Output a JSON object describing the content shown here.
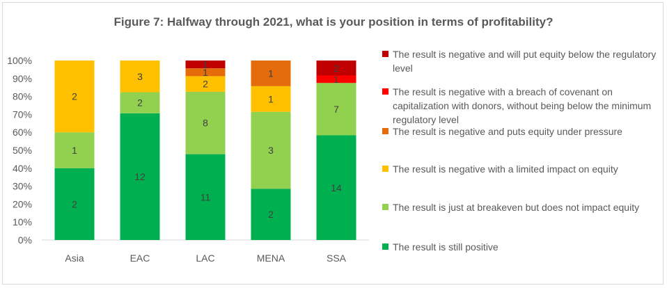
{
  "chart_data": {
    "type": "bar",
    "stacked": "percent",
    "title": "Figure 7: Halfway through 2021, what is your position in terms of profitability?",
    "categories": [
      "Asia",
      "EAC",
      "LAC",
      "MENA",
      "SSA"
    ],
    "y_ticks": [
      "0%",
      "10%",
      "20%",
      "30%",
      "40%",
      "50%",
      "60%",
      "70%",
      "80%",
      "90%",
      "100%"
    ],
    "ylim": [
      0,
      100
    ],
    "grid": false,
    "legend_position": "right",
    "series": [
      {
        "name": "The result is still positive",
        "color": "#00b050",
        "values": [
          2,
          12,
          11,
          2,
          14
        ]
      },
      {
        "name": "The result is just at breakeven but does not impact equity",
        "color": "#92d050",
        "values": [
          1,
          2,
          8,
          3,
          7
        ]
      },
      {
        "name": "The result is negative with a limited impact on equity",
        "color": "#ffc000",
        "values": [
          2,
          3,
          2,
          1,
          0
        ]
      },
      {
        "name": "The result is negative and puts equity under pressure",
        "color": "#e46c0a",
        "values": [
          0,
          0,
          1,
          1,
          0
        ]
      },
      {
        "name": "The result is negative with a breach of covenant on capitalization with donors, without being below the minimum regulatory level",
        "color": "#ff0000",
        "values": [
          0,
          0,
          0,
          0,
          1
        ]
      },
      {
        "name": "The result is negative and will put equity below the regulatory level",
        "color": "#c00000",
        "values": [
          0,
          0,
          1,
          0,
          2
        ]
      }
    ]
  }
}
